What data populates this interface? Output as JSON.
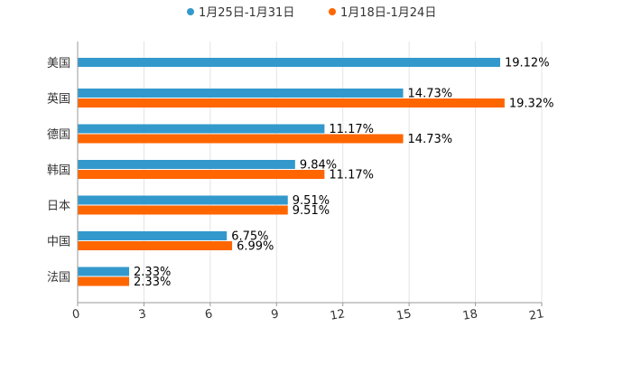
{
  "chart_data": {
    "type": "bar",
    "orientation": "horizontal",
    "title": "",
    "xlabel": "",
    "ylabel": "",
    "xlim": [
      0,
      21
    ],
    "x_ticks": [
      0,
      3,
      6,
      9,
      12,
      15,
      18,
      21
    ],
    "grid": true,
    "legend_position": "top-center",
    "categories": [
      "美国",
      "英国",
      "德国",
      "韩国",
      "日本",
      "中国",
      "法国"
    ],
    "series": [
      {
        "name": "1月25日-1月31日",
        "color": "#3399cc",
        "values": [
          19.12,
          14.73,
          11.17,
          9.84,
          9.51,
          6.75,
          2.33
        ],
        "labels": [
          "19.12%",
          "14.73%",
          "11.17%",
          "9.84%",
          "9.51%",
          "6.75%",
          "2.33%"
        ]
      },
      {
        "name": "1月18日-1月24日",
        "color": "#ff6600",
        "values": [
          null,
          19.32,
          14.73,
          11.17,
          9.51,
          6.99,
          2.33
        ],
        "labels": [
          "",
          "19.32%",
          "14.73%",
          "11.17%",
          "9.51%",
          "6.99%",
          "2.33%"
        ]
      }
    ]
  }
}
